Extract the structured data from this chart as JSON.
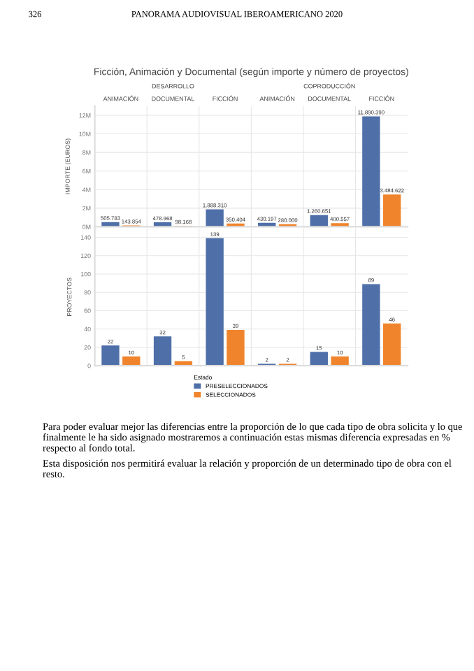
{
  "chart_data": [
    {
      "type": "bar",
      "title": "Ficción, Animación y Documental (según importe y número de proyectos)",
      "categories": [
        "ANIMACIÓN",
        "DOCUMENTAL",
        "FICCIÓN",
        "ANIMACIÓN",
        "DOCUMENTAL",
        "FICCIÓN"
      ],
      "ylabel": "IMPORTE (EUROS)",
      "series": [
        {
          "color": "#4e6fa8",
          "values": [
            505783,
            478968,
            1888310,
            430197,
            1260651,
            11890390
          ],
          "value_labels": [
            "505.783",
            "478.968",
            "1.888.310",
            "430.197",
            "1.260.651",
            "11.890.390"
          ]
        },
        {
          "color": "#f0842c",
          "values": [
            143854,
            98168,
            350404,
            280000,
            400557,
            3484622
          ],
          "value_labels": [
            "143.854",
            "98.168",
            "350.404",
            "280.000",
            "400.557",
            "3.484.622"
          ]
        }
      ],
      "ylim": [
        0,
        13000000
      ],
      "yticks": [
        {
          "value": 0,
          "label": "0M"
        },
        {
          "value": 2000000,
          "label": "2M"
        },
        {
          "value": 4000000,
          "label": "4M"
        },
        {
          "value": 6000000,
          "label": "6M"
        },
        {
          "value": 8000000,
          "label": "8M"
        },
        {
          "value": 10000000,
          "label": "10M"
        },
        {
          "value": 12000000,
          "label": "12M"
        }
      ],
      "grid": "y",
      "annotations": [
        "DESARROLLO",
        "COPRODUCCIÓN",
        "PANORAMA AUDIOVISUAL IBEROAMERICANO 2020",
        "326",
        "Para poder evaluar mejor las diferencias entre la proporción de lo que cada tipo de obra solicita y lo que finalmente le ha sido asignado mostraremos a continuación estas mismas diferencia expresadas en % respecto al fondo total.",
        "Esta disposición nos permitirá evaluar la relación y proporción de un determinado tipo de obra con el resto."
      ]
    },
    {
      "type": "bar",
      "categories": [
        null,
        null,
        null,
        null,
        null,
        null
      ],
      "ylabel": "PROYECTOS",
      "legend_title": "Estado",
      "series": [
        {
          "name": "PRESELECCIONADOS",
          "color": "#4e6fa8",
          "values": [
            22,
            32,
            139,
            2,
            15,
            89
          ]
        },
        {
          "name": "SELECCIONADOS",
          "color": "#f0842c",
          "values": [
            10,
            5,
            39,
            2,
            10,
            46
          ]
        }
      ],
      "data_labels": true,
      "ylim": [
        0,
        150
      ],
      "yticks": [
        0,
        20,
        40,
        60,
        80,
        100,
        120,
        140
      ],
      "grid": "y",
      "legend": "bottom",
      "tick_labels": "y"
    }
  ]
}
